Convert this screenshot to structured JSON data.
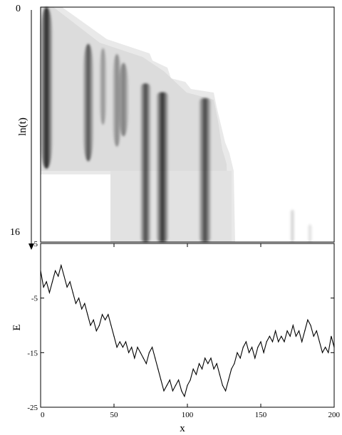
{
  "chart_data": [
    {
      "type": "heatmap",
      "title": "",
      "xlabel": "",
      "ylabel": "ln(t)",
      "ylim": [
        0,
        16
      ],
      "y_ticks": [
        "0",
        "16"
      ],
      "xlim": [
        0,
        200
      ],
      "colormap": "grayscale (white = low, black = high)",
      "dark_bands": [
        {
          "x": [
            0,
            8
          ],
          "t": [
            0,
            11
          ],
          "darkness": 0.85
        },
        {
          "x": [
            29,
            36
          ],
          "t": [
            2.5,
            10.5
          ],
          "darkness": 0.65
        },
        {
          "x": [
            40,
            45
          ],
          "t": [
            2.8,
            8
          ],
          "darkness": 0.35
        },
        {
          "x": [
            49,
            55
          ],
          "t": [
            3.2,
            9.5
          ],
          "darkness": 0.4
        },
        {
          "x": [
            53,
            60
          ],
          "t": [
            3.8,
            8.8
          ],
          "darkness": 0.45
        },
        {
          "x": [
            68,
            75
          ],
          "t": [
            5.2,
            16
          ],
          "darkness": 0.7
        },
        {
          "x": [
            79,
            87
          ],
          "t": [
            5.8,
            16
          ],
          "darkness": 0.8
        },
        {
          "x": [
            108,
            116
          ],
          "t": [
            6.2,
            16
          ],
          "darkness": 0.7
        },
        {
          "x": [
            170,
            173
          ],
          "t": [
            13.8,
            16
          ],
          "darkness": 0.2
        },
        {
          "x": [
            182,
            185
          ],
          "t": [
            14.8,
            16
          ],
          "darkness": 0.15
        }
      ]
    },
    {
      "type": "line",
      "title": "",
      "xlabel": "x",
      "ylabel": "E",
      "xlim": [
        0,
        200
      ],
      "ylim": [
        -25,
        5
      ],
      "x_ticks": [
        "0",
        "50",
        "100",
        "150",
        "200"
      ],
      "y_ticks": [
        "5",
        "-5",
        "-15",
        "-25"
      ],
      "grid": false,
      "x": [
        0,
        2,
        4,
        6,
        8,
        10,
        12,
        14,
        16,
        18,
        20,
        22,
        24,
        26,
        28,
        30,
        32,
        34,
        36,
        38,
        40,
        42,
        44,
        46,
        48,
        50,
        52,
        54,
        56,
        58,
        60,
        62,
        64,
        66,
        68,
        70,
        72,
        74,
        76,
        78,
        80,
        82,
        84,
        86,
        88,
        90,
        92,
        94,
        96,
        98,
        100,
        102,
        104,
        106,
        108,
        110,
        112,
        114,
        116,
        118,
        120,
        122,
        124,
        126,
        128,
        130,
        132,
        134,
        136,
        138,
        140,
        142,
        144,
        146,
        148,
        150,
        152,
        154,
        156,
        158,
        160,
        162,
        164,
        166,
        168,
        170,
        172,
        174,
        176,
        178,
        180,
        182,
        184,
        186,
        188,
        190,
        192,
        194,
        196,
        198,
        200
      ],
      "y": [
        0,
        -3,
        -2,
        -4,
        -2,
        0,
        -1,
        1,
        -1,
        -3,
        -2,
        -4,
        -6,
        -5,
        -7,
        -6,
        -8,
        -10,
        -9,
        -11,
        -10,
        -8,
        -9,
        -8,
        -10,
        -12,
        -14,
        -13,
        -14,
        -13,
        -15,
        -14,
        -16,
        -14,
        -15,
        -16,
        -17,
        -15,
        -14,
        -16,
        -18,
        -20,
        -22,
        -21,
        -20,
        -22,
        -21,
        -20,
        -22,
        -23,
        -21,
        -20,
        -18,
        -19,
        -17,
        -18,
        -16,
        -17,
        -16,
        -18,
        -17,
        -19,
        -21,
        -22,
        -20,
        -18,
        -17,
        -15,
        -16,
        -14,
        -13,
        -15,
        -14,
        -16,
        -14,
        -13,
        -15,
        -13,
        -12,
        -13,
        -11,
        -13,
        -12,
        -13,
        -11,
        -12,
        -10,
        -12,
        -11,
        -13,
        -11,
        -9,
        -10,
        -12,
        -11,
        -13,
        -15,
        -14,
        -15,
        -12,
        -14
      ]
    }
  ]
}
